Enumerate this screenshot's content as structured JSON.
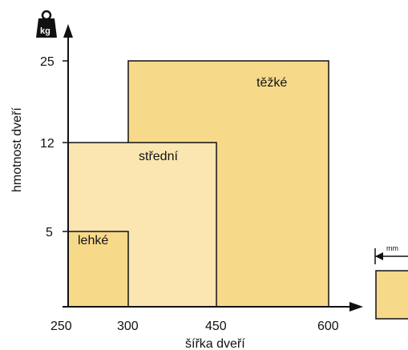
{
  "diagram": {
    "axes": {
      "x_label": "šířka dveří",
      "y_label": "hmotnost dveří",
      "x_ticks": [
        "250",
        "300",
        "450",
        "600"
      ],
      "y_ticks": [
        "25",
        "12",
        "5"
      ]
    },
    "icons": {
      "weight_icon_text": "kg",
      "width_icon_text": "mm"
    },
    "regions": [
      {
        "label": "těžké",
        "width_mm": [
          250,
          600
        ],
        "weight_kg": [
          12,
          25
        ],
        "color": "#f7d98a"
      },
      {
        "label": "střední",
        "width_mm": [
          250,
          450
        ],
        "weight_kg": [
          5,
          12
        ],
        "color": "#fbe6b2"
      },
      {
        "label": "lehké",
        "width_mm": [
          250,
          300
        ],
        "weight_kg": [
          0,
          5
        ],
        "color": "#f7d98a"
      }
    ],
    "colors": {
      "heavy_fill": "#f7d98a",
      "medium_fill": "#fbe6b2",
      "light_fill": "#f7d98a",
      "stroke": "#111111"
    }
  }
}
